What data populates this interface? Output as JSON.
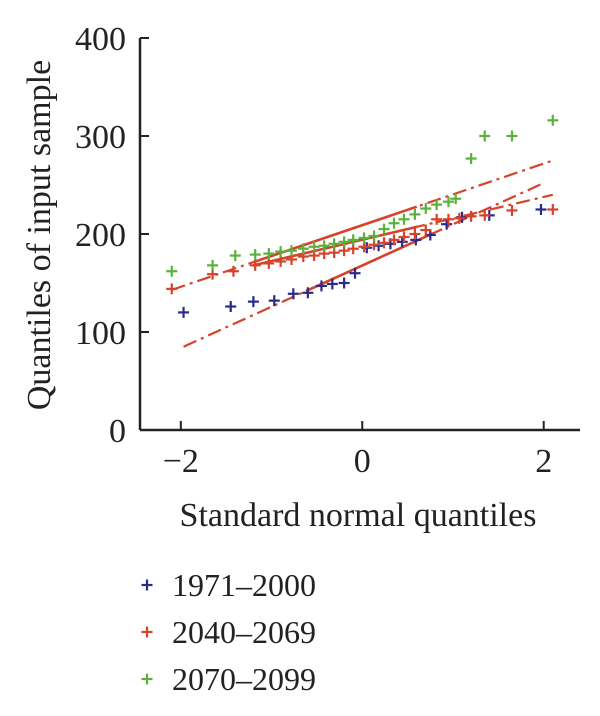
{
  "chart_data": {
    "type": "scatter",
    "xlabel": "Standard normal quantiles",
    "ylabel": "Quantiles of input sample",
    "xlim": [
      -2.45,
      2.4
    ],
    "ylim": [
      0,
      400
    ],
    "xticks": [
      -2,
      0,
      2
    ],
    "xtick_labels": [
      "−2",
      "0",
      "2"
    ],
    "yticks": [
      0,
      100,
      200,
      300,
      400
    ],
    "grid": false,
    "legend_position": "bottom",
    "series": [
      {
        "name": "1971–2000",
        "color": "#2b2a8c",
        "marker": "plus",
        "x": [
          -1.97,
          -1.45,
          -1.2,
          -0.97,
          -0.76,
          -0.6,
          -0.45,
          -0.33,
          -0.2,
          -0.08,
          0.05,
          0.18,
          0.31,
          0.44,
          0.59,
          0.75,
          0.93,
          1.1,
          1.4,
          1.97
        ],
        "y": [
          120,
          126,
          131,
          132,
          139,
          140,
          147,
          149,
          150,
          160,
          186,
          188,
          190,
          192,
          194,
          199,
          210,
          217,
          219,
          225
        ],
        "fit": {
          "x1": -1.97,
          "y1": 85,
          "x2": 2.0,
          "y2": 252,
          "solid_x1": -0.62,
          "solid_x2": 0.78
        }
      },
      {
        "name": "2040–2069",
        "color": "#d6432a",
        "marker": "plus",
        "x": [
          -2.1,
          -1.65,
          -1.42,
          -1.18,
          -1.03,
          -0.9,
          -0.78,
          -0.65,
          -0.53,
          -0.42,
          -0.31,
          -0.2,
          -0.1,
          0.02,
          0.13,
          0.24,
          0.35,
          0.46,
          0.58,
          0.7,
          0.82,
          0.95,
          1.07,
          1.2,
          1.35,
          1.65,
          2.1
        ],
        "y": [
          144,
          159,
          162,
          168,
          170,
          172,
          174,
          177,
          178,
          180,
          181,
          183,
          185,
          187,
          189,
          191,
          194,
          197,
          200,
          204,
          215,
          215,
          216,
          218,
          219,
          224,
          225
        ],
        "fit_upper": {
          "x1": -2.1,
          "y1": 143,
          "x2": 2.1,
          "y2": 275,
          "solid_x1": -1.2,
          "solid_x2": 0.6
        },
        "fit_lower": {
          "x1": -1.2,
          "y1": 168,
          "x2": 2.1,
          "y2": 240,
          "solid_x1": -1.2,
          "solid_x2": 0.6
        }
      },
      {
        "name": "2070–2099",
        "color": "#5ab23a",
        "marker": "plus",
        "x": [
          -2.1,
          -1.65,
          -1.4,
          -1.18,
          -1.03,
          -0.9,
          -0.78,
          -0.65,
          -0.53,
          -0.42,
          -0.31,
          -0.2,
          -0.1,
          0.02,
          0.13,
          0.24,
          0.35,
          0.46,
          0.58,
          0.7,
          0.82,
          0.95,
          1.03,
          1.2,
          1.35,
          1.65,
          2.1
        ],
        "y": [
          162,
          168,
          178,
          179,
          180,
          182,
          183,
          185,
          187,
          188,
          190,
          192,
          194,
          196,
          198,
          205,
          211,
          215,
          220,
          226,
          230,
          233,
          236,
          277,
          300,
          300,
          316
        ]
      }
    ]
  }
}
